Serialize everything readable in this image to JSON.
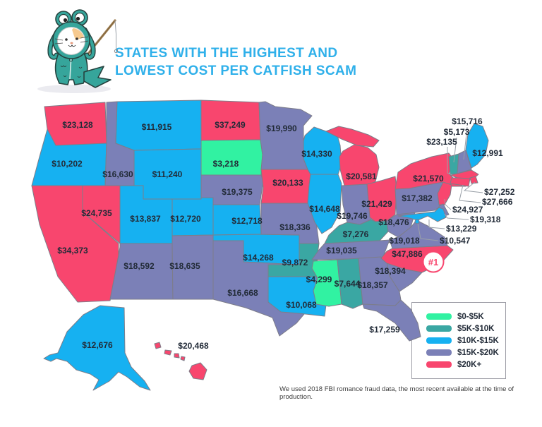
{
  "title": {
    "line1": "STATES WITH THE HIGHEST AND",
    "line2": "LOWEST COST PER CATFISH SCAM"
  },
  "badge": {
    "label": "#1"
  },
  "footer": {
    "note": "We used 2018 FBI romance fraud data, the most recent available at the time of production."
  },
  "mascot": {
    "description": "cat-in-fish-costume-with-fishing-rod"
  },
  "colors": {
    "title_accent": "#2fb0ea",
    "label_text": "#222b38",
    "badge_accent": "#f8466e",
    "state_border": "#7d7d89"
  },
  "chart_data": {
    "type": "heatmap",
    "subtype": "us-choropleth-map",
    "title": "States with the Highest and Lowest Cost per Catfish Scam",
    "unit": "USD per scam",
    "source_note": "We used 2018 FBI romance fraud data, the most recent available at the time of production.",
    "legend_position": "bottom-right",
    "buckets": [
      {
        "label": "$0-$5K",
        "color": "#31f2a2"
      },
      {
        "label": "$5K-$10K",
        "color": "#3aa7a3"
      },
      {
        "label": "$10K-$15K",
        "color": "#16b1f1"
      },
      {
        "label": "$15K-$20K",
        "color": "#7b80b7"
      },
      {
        "label": "$20K+",
        "color": "#f8466e"
      }
    ],
    "highlight": {
      "state": "NC",
      "note": "#1",
      "reason": "highest cost"
    },
    "states": [
      {
        "id": "WA",
        "name": "Washington",
        "value": "$23,128",
        "bucket": "$20K+"
      },
      {
        "id": "OR",
        "name": "Oregon",
        "value": "$10,202",
        "bucket": "$10K-$15K"
      },
      {
        "id": "CA",
        "name": "California",
        "value": "$34,373",
        "bucket": "$20K+"
      },
      {
        "id": "NV",
        "name": "Nevada",
        "value": "$24,735",
        "bucket": "$20K+"
      },
      {
        "id": "ID",
        "name": "Idaho",
        "value": "$16,630",
        "bucket": "$15K-$20K"
      },
      {
        "id": "MT",
        "name": "Montana",
        "value": "$11,915",
        "bucket": "$10K-$15K"
      },
      {
        "id": "WY",
        "name": "Wyoming",
        "value": "$11,240",
        "bucket": "$10K-$15K"
      },
      {
        "id": "UT",
        "name": "Utah",
        "value": "$13,837",
        "bucket": "$10K-$15K"
      },
      {
        "id": "CO",
        "name": "Colorado",
        "value": "$12,720",
        "bucket": "$10K-$15K"
      },
      {
        "id": "AZ",
        "name": "Arizona",
        "value": "$18,592",
        "bucket": "$15K-$20K"
      },
      {
        "id": "NM",
        "name": "New Mexico",
        "value": "$18,635",
        "bucket": "$15K-$20K"
      },
      {
        "id": "ND",
        "name": "North Dakota",
        "value": "$37,249",
        "bucket": "$20K+"
      },
      {
        "id": "SD",
        "name": "South Dakota",
        "value": "$3,218",
        "bucket": "$0-$5K"
      },
      {
        "id": "NE",
        "name": "Nebraska",
        "value": "$19,375",
        "bucket": "$15K-$20K"
      },
      {
        "id": "KS",
        "name": "Kansas",
        "value": "$12,718",
        "bucket": "$10K-$15K"
      },
      {
        "id": "OK",
        "name": "Oklahoma",
        "value": "$14,268",
        "bucket": "$10K-$15K"
      },
      {
        "id": "TX",
        "name": "Texas",
        "value": "$16,668",
        "bucket": "$15K-$20K"
      },
      {
        "id": "MN",
        "name": "Minnesota",
        "value": "$19,990",
        "bucket": "$15K-$20K"
      },
      {
        "id": "IA",
        "name": "Iowa",
        "value": "$20,133",
        "bucket": "$20K+"
      },
      {
        "id": "MO",
        "name": "Missouri",
        "value": "$18,336",
        "bucket": "$15K-$20K"
      },
      {
        "id": "AR",
        "name": "Arkansas",
        "value": "$9,872",
        "bucket": "$5K-$10K"
      },
      {
        "id": "LA",
        "name": "Louisiana",
        "value": "$10,068",
        "bucket": "$10K-$15K"
      },
      {
        "id": "WI",
        "name": "Wisconsin",
        "value": "$14,330",
        "bucket": "$10K-$15K"
      },
      {
        "id": "IL",
        "name": "Illinois",
        "value": "$14,648",
        "bucket": "$10K-$15K"
      },
      {
        "id": "MI",
        "name": "Michigan",
        "value": "$20,581",
        "bucket": "$20K+"
      },
      {
        "id": "IN",
        "name": "Indiana",
        "value": "$19,746",
        "bucket": "$15K-$20K"
      },
      {
        "id": "OH",
        "name": "Ohio",
        "value": "$21,429",
        "bucket": "$20K+"
      },
      {
        "id": "KY",
        "name": "Kentucky",
        "value": "$7,276",
        "bucket": "$5K-$10K"
      },
      {
        "id": "TN",
        "name": "Tennessee",
        "value": "$19,035",
        "bucket": "$15K-$20K"
      },
      {
        "id": "MS",
        "name": "Mississippi",
        "value": "$4,299",
        "bucket": "$0-$5K"
      },
      {
        "id": "AL",
        "name": "Alabama",
        "value": "$7,644",
        "bucket": "$5K-$10K"
      },
      {
        "id": "GA",
        "name": "Georgia",
        "value": "$18,357",
        "bucket": "$15K-$20K"
      },
      {
        "id": "FL",
        "name": "Florida",
        "value": "$17,259",
        "bucket": "$15K-$20K"
      },
      {
        "id": "SC",
        "name": "South Carolina",
        "value": "$18,394",
        "bucket": "$15K-$20K"
      },
      {
        "id": "NC",
        "name": "North Carolina",
        "value": "$47,886",
        "bucket": "$20K+",
        "note": "#1"
      },
      {
        "id": "VA",
        "name": "Virginia",
        "value": "$19,018",
        "bucket": "$15K-$20K"
      },
      {
        "id": "WV",
        "name": "West Virginia",
        "value": "$18,476",
        "bucket": "$15K-$20K"
      },
      {
        "id": "PA",
        "name": "Pennsylvania",
        "value": "$17,382",
        "bucket": "$15K-$20K"
      },
      {
        "id": "NY",
        "name": "New York",
        "value": "$21,570",
        "bucket": "$20K+"
      },
      {
        "id": "NJ",
        "name": "New Jersey",
        "value": "$24,927",
        "bucket": "$20K+"
      },
      {
        "id": "DE",
        "name": "Delaware",
        "value": "$19,318",
        "bucket": "$15K-$20K"
      },
      {
        "id": "MD",
        "name": "Maryland",
        "value": "$13,229",
        "bucket": "$10K-$15K"
      },
      {
        "id": "DC",
        "name": "District of Columbia",
        "value": "$10,547",
        "bucket": "$10K-$15K"
      },
      {
        "id": "VT",
        "name": "Vermont",
        "value": "$5,173",
        "bucket": "$5K-$10K"
      },
      {
        "id": "NH",
        "name": "New Hampshire",
        "value": "$15,716",
        "bucket": "$15K-$20K"
      },
      {
        "id": "MA",
        "name": "Massachusetts",
        "value": "$23,135",
        "bucket": "$20K+"
      },
      {
        "id": "RI",
        "name": "Rhode Island",
        "value": "$27,252",
        "bucket": "$20K+"
      },
      {
        "id": "CT",
        "name": "Connecticut",
        "value": "$27,666",
        "bucket": "$20K+"
      },
      {
        "id": "ME",
        "name": "Maine",
        "value": "$12,991",
        "bucket": "$10K-$15K"
      },
      {
        "id": "AK",
        "name": "Alaska",
        "value": "$12,676",
        "bucket": "$10K-$15K"
      },
      {
        "id": "HI",
        "name": "Hawaii",
        "value": "$20,468",
        "bucket": "$20K+"
      }
    ]
  }
}
